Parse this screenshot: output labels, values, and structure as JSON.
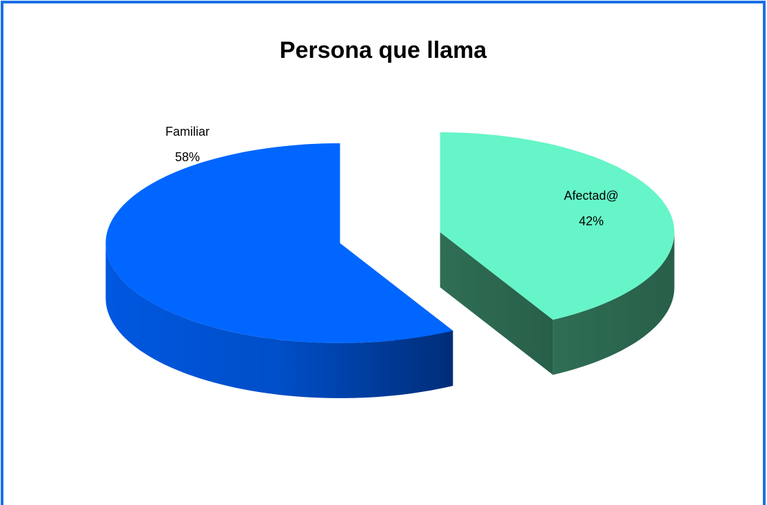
{
  "chart_data": {
    "type": "pie",
    "title": "Persona que llama",
    "categories": [
      "Familiar",
      "Afectad@"
    ],
    "values": [
      58,
      42
    ],
    "value_labels": [
      "58%",
      "42%"
    ],
    "colors": [
      "#0066ff",
      "#66f5c8"
    ]
  }
}
